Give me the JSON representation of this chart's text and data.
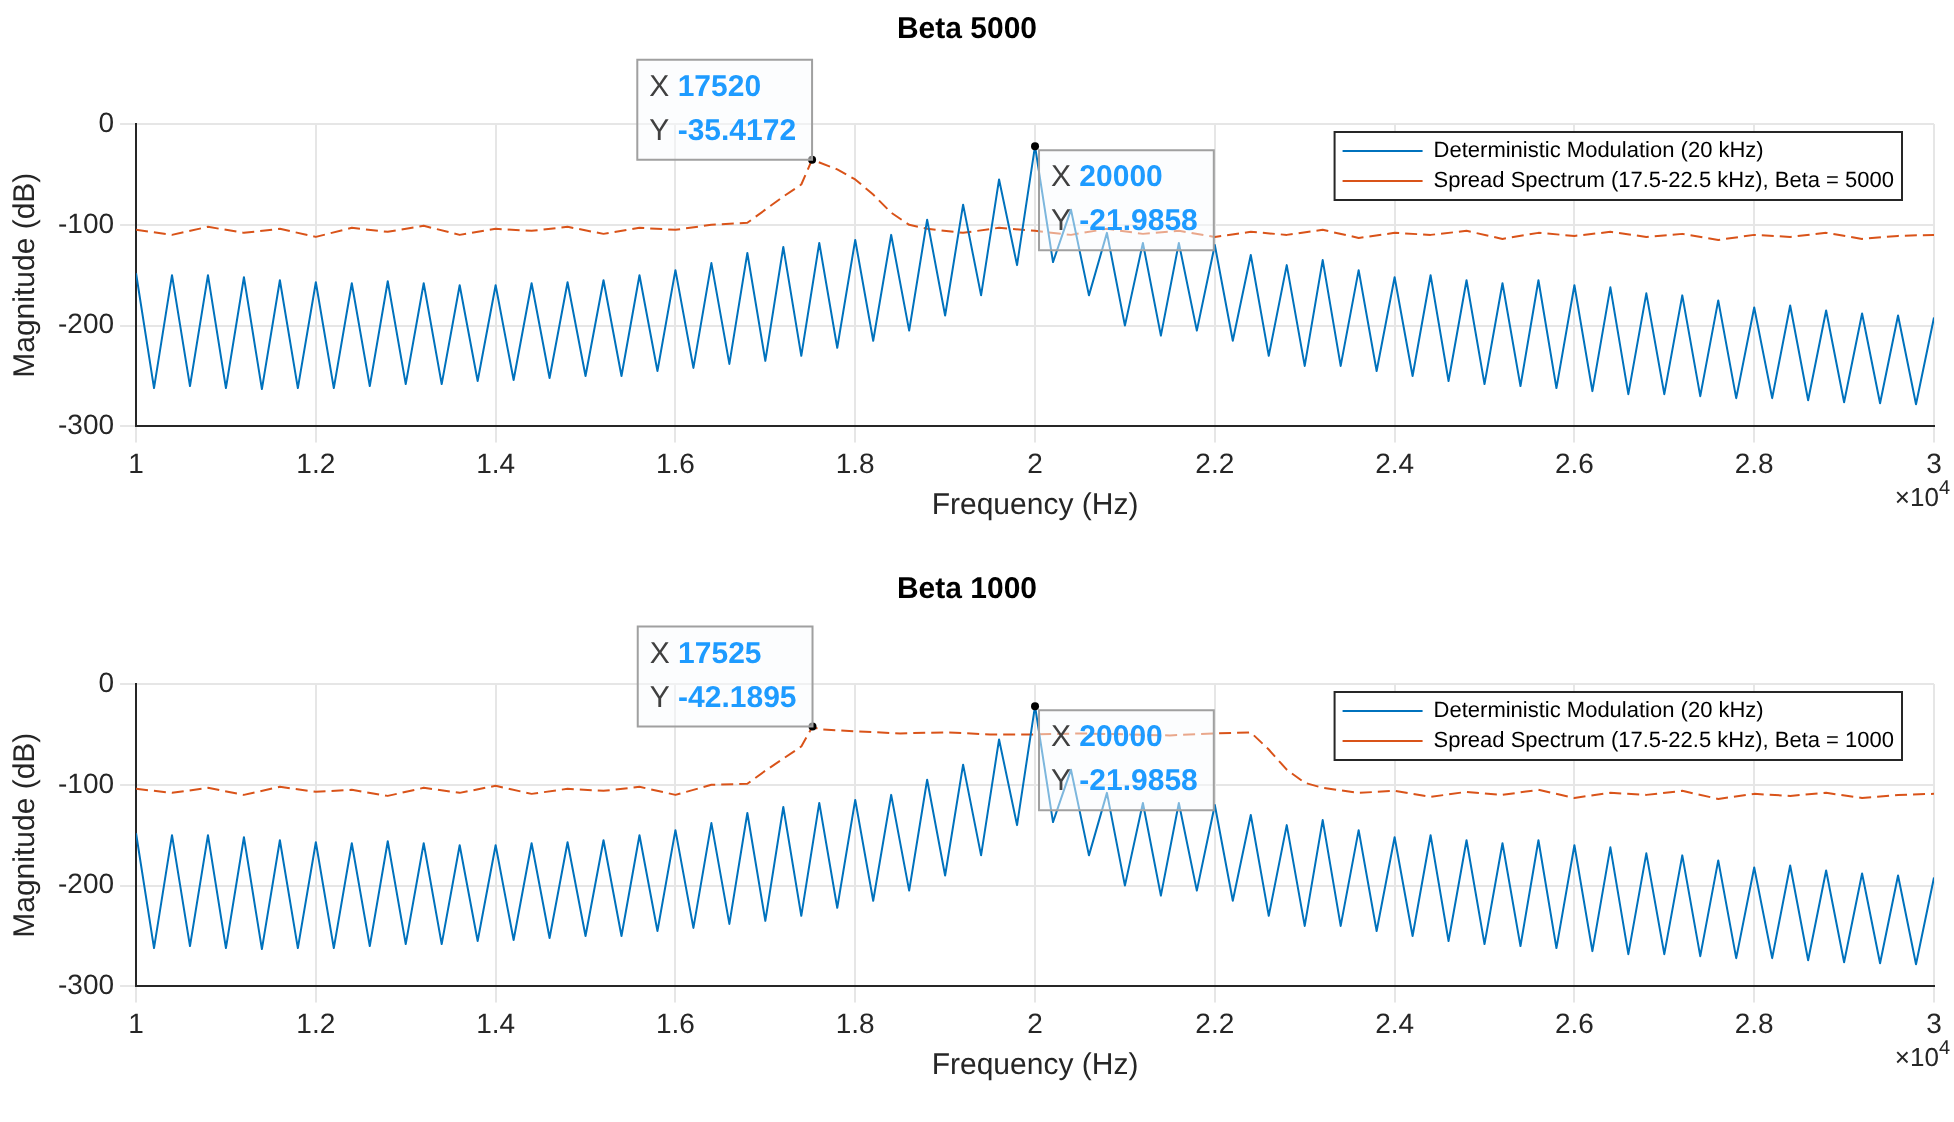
{
  "chart_data": [
    {
      "type": "line",
      "title": "Beta 5000",
      "xlabel": "Frequency (Hz)",
      "ylabel": "Magnitude (dB)",
      "xlim": [
        1,
        3
      ],
      "ylim": [
        -300,
        0
      ],
      "xticks": [
        1,
        1.2,
        1.4,
        1.6,
        1.8,
        2,
        2.2,
        2.4,
        2.6,
        2.8,
        3
      ],
      "yticks": [
        -300,
        -200,
        -100,
        0
      ],
      "grid": true,
      "legend": "top right",
      "marker": "none",
      "annotations": [
        {
          "text": "X 17520\nY -35.4172",
          "x": 1.752,
          "y": -35.4172
        },
        {
          "text": "X 20000\nY -21.9858",
          "x": 2,
          "y": -21.9858
        },
        "×10$^{4}$"
      ],
      "series": [
        {
          "name": "Deterministic Modulation (20 kHz)",
          "color": "#0072bd",
          "line_style": "solid",
          "x": [
            1,
            1.02,
            1.04,
            1.06,
            1.08,
            1.1,
            1.12,
            1.14,
            1.16,
            1.18,
            1.2,
            1.22,
            1.24,
            1.26,
            1.28,
            1.3,
            1.32,
            1.34,
            1.36,
            1.38,
            1.4,
            1.42,
            1.44,
            1.46,
            1.48,
            1.5,
            1.52,
            1.54,
            1.56,
            1.58,
            1.6,
            1.62,
            1.64,
            1.66,
            1.68,
            1.7,
            1.72,
            1.74,
            1.76,
            1.78,
            1.8,
            1.82,
            1.84,
            1.86,
            1.88,
            1.9,
            1.92,
            1.94,
            1.96,
            1.98,
            2,
            2.02,
            2.04,
            2.06,
            2.08,
            2.1,
            2.12,
            2.14,
            2.16,
            2.18,
            2.2,
            2.22,
            2.24,
            2.26,
            2.28,
            2.3,
            2.32,
            2.34,
            2.36,
            2.38,
            2.4,
            2.42,
            2.44,
            2.46,
            2.48,
            2.5,
            2.52,
            2.54,
            2.56,
            2.58,
            2.6,
            2.62,
            2.64,
            2.66,
            2.68,
            2.7,
            2.72,
            2.74,
            2.76,
            2.78,
            2.8,
            2.82,
            2.84,
            2.86,
            2.88,
            2.9,
            2.92,
            2.94,
            2.96,
            2.98,
            3
          ],
          "values": [
            -148,
            -262,
            -150,
            -260,
            -150,
            -262,
            -152,
            -263,
            -155,
            -262,
            -157,
            -262,
            -158,
            -260,
            -156,
            -258,
            -158,
            -258,
            -160,
            -255,
            -160,
            -254,
            -158,
            -252,
            -157,
            -250,
            -155,
            -250,
            -150,
            -245,
            -145,
            -242,
            -138,
            -238,
            -128,
            -235,
            -122,
            -230,
            -118,
            -222,
            -115,
            -215,
            -110,
            -205,
            -95,
            -190,
            -80,
            -170,
            -55,
            -140,
            -21.9858,
            -137,
            -85,
            -170,
            -108,
            -200,
            -118,
            -210,
            -118,
            -205,
            -120,
            -215,
            -130,
            -230,
            -140,
            -240,
            -135,
            -240,
            -145,
            -245,
            -152,
            -250,
            -150,
            -255,
            -155,
            -258,
            -158,
            -260,
            -155,
            -262,
            -160,
            -265,
            -162,
            -268,
            -168,
            -268,
            -170,
            -270,
            -175,
            -272,
            -182,
            -272,
            -180,
            -274,
            -185,
            -276,
            -188,
            -277,
            -190,
            -278,
            -192
          ]
        },
        {
          "name": "Spread Spectrum (17.5-22.5 kHz), Beta = 5000",
          "color": "#d95319",
          "line_style": "dashed",
          "x": [
            1,
            1.04,
            1.08,
            1.12,
            1.16,
            1.2,
            1.24,
            1.28,
            1.32,
            1.36,
            1.4,
            1.44,
            1.48,
            1.52,
            1.56,
            1.6,
            1.64,
            1.68,
            1.7,
            1.72,
            1.74,
            1.752,
            1.78,
            1.8,
            1.82,
            1.84,
            1.86,
            1.88,
            1.92,
            1.96,
            2,
            2.04,
            2.08,
            2.12,
            2.16,
            2.2,
            2.24,
            2.28,
            2.32,
            2.36,
            2.4,
            2.44,
            2.48,
            2.52,
            2.56,
            2.6,
            2.64,
            2.68,
            2.72,
            2.76,
            2.8,
            2.84,
            2.88,
            2.92,
            2.96,
            3
          ],
          "values": [
            -105,
            -110,
            -102,
            -108,
            -104,
            -112,
            -103,
            -107,
            -101,
            -110,
            -104,
            -106,
            -102,
            -109,
            -103,
            -105,
            -100,
            -98,
            -85,
            -72,
            -60,
            -35.4172,
            -45,
            -55,
            -70,
            -88,
            -100,
            -104,
            -108,
            -103,
            -106,
            -110,
            -104,
            -109,
            -106,
            -112,
            -107,
            -110,
            -105,
            -113,
            -108,
            -110,
            -106,
            -114,
            -108,
            -111,
            -107,
            -112,
            -109,
            -115,
            -110,
            -112,
            -108,
            -114,
            -111,
            -110
          ]
        }
      ]
    },
    {
      "type": "line",
      "title": "Beta 1000",
      "xlabel": "Frequency (Hz)",
      "ylabel": "Magnitude (dB)",
      "xlim": [
        1,
        3
      ],
      "ylim": [
        -300,
        0
      ],
      "xticks": [
        1,
        1.2,
        1.4,
        1.6,
        1.8,
        2,
        2.2,
        2.4,
        2.6,
        2.8,
        3
      ],
      "yticks": [
        -300,
        -200,
        -100,
        0
      ],
      "grid": true,
      "legend": "top right",
      "marker": "none",
      "annotations": [
        {
          "text": "X 17525\nY -42.1895",
          "x": 1.7525,
          "y": -42.1895
        },
        {
          "text": "X 20000\nY -21.9858",
          "x": 2,
          "y": -21.9858
        },
        "×10$^{4}$"
      ],
      "series": [
        {
          "name": "Deterministic Modulation (20 kHz)",
          "color": "#0072bd",
          "line_style": "solid",
          "x": [
            1,
            1.02,
            1.04,
            1.06,
            1.08,
            1.1,
            1.12,
            1.14,
            1.16,
            1.18,
            1.2,
            1.22,
            1.24,
            1.26,
            1.28,
            1.3,
            1.32,
            1.34,
            1.36,
            1.38,
            1.4,
            1.42,
            1.44,
            1.46,
            1.48,
            1.5,
            1.52,
            1.54,
            1.56,
            1.58,
            1.6,
            1.62,
            1.64,
            1.66,
            1.68,
            1.7,
            1.72,
            1.74,
            1.76,
            1.78,
            1.8,
            1.82,
            1.84,
            1.86,
            1.88,
            1.9,
            1.92,
            1.94,
            1.96,
            1.98,
            2,
            2.02,
            2.04,
            2.06,
            2.08,
            2.1,
            2.12,
            2.14,
            2.16,
            2.18,
            2.2,
            2.22,
            2.24,
            2.26,
            2.28,
            2.3,
            2.32,
            2.34,
            2.36,
            2.38,
            2.4,
            2.42,
            2.44,
            2.46,
            2.48,
            2.5,
            2.52,
            2.54,
            2.56,
            2.58,
            2.6,
            2.62,
            2.64,
            2.66,
            2.68,
            2.7,
            2.72,
            2.74,
            2.76,
            2.78,
            2.8,
            2.82,
            2.84,
            2.86,
            2.88,
            2.9,
            2.92,
            2.94,
            2.96,
            2.98,
            3
          ],
          "values": [
            -148,
            -262,
            -150,
            -260,
            -150,
            -262,
            -152,
            -263,
            -155,
            -262,
            -157,
            -262,
            -158,
            -260,
            -156,
            -258,
            -158,
            -258,
            -160,
            -255,
            -160,
            -254,
            -158,
            -252,
            -157,
            -250,
            -155,
            -250,
            -150,
            -245,
            -145,
            -242,
            -138,
            -238,
            -128,
            -235,
            -122,
            -230,
            -118,
            -222,
            -115,
            -215,
            -110,
            -205,
            -95,
            -190,
            -80,
            -170,
            -55,
            -140,
            -21.9858,
            -137,
            -85,
            -170,
            -108,
            -200,
            -118,
            -210,
            -118,
            -205,
            -120,
            -215,
            -130,
            -230,
            -140,
            -240,
            -135,
            -240,
            -145,
            -245,
            -152,
            -250,
            -150,
            -255,
            -155,
            -258,
            -158,
            -260,
            -155,
            -262,
            -160,
            -265,
            -162,
            -268,
            -168,
            -268,
            -170,
            -270,
            -175,
            -272,
            -182,
            -272,
            -180,
            -274,
            -185,
            -276,
            -188,
            -277,
            -190,
            -278,
            -192
          ]
        },
        {
          "name": "Spread Spectrum (17.5-22.5 kHz), Beta = 1000",
          "color": "#d95319",
          "line_style": "dashed",
          "x": [
            1,
            1.04,
            1.08,
            1.12,
            1.16,
            1.2,
            1.24,
            1.28,
            1.32,
            1.36,
            1.4,
            1.44,
            1.48,
            1.52,
            1.56,
            1.6,
            1.64,
            1.68,
            1.7,
            1.72,
            1.74,
            1.7525,
            1.76,
            1.8,
            1.85,
            1.9,
            1.95,
            2,
            2.05,
            2.1,
            2.15,
            2.2,
            2.24,
            2.26,
            2.28,
            2.3,
            2.32,
            2.36,
            2.4,
            2.44,
            2.48,
            2.52,
            2.56,
            2.6,
            2.64,
            2.68,
            2.72,
            2.76,
            2.8,
            2.84,
            2.88,
            2.92,
            2.96,
            3
          ],
          "values": [
            -104,
            -108,
            -103,
            -110,
            -102,
            -107,
            -105,
            -111,
            -103,
            -108,
            -101,
            -109,
            -104,
            -106,
            -102,
            -110,
            -100,
            -99,
            -86,
            -74,
            -62,
            -42.1895,
            -45,
            -47,
            -49,
            -48,
            -50,
            -50,
            -49,
            -50,
            -51,
            -49,
            -48,
            -65,
            -85,
            -98,
            -103,
            -108,
            -106,
            -112,
            -107,
            -110,
            -105,
            -113,
            -108,
            -110,
            -106,
            -114,
            -109,
            -111,
            -108,
            -113,
            -110,
            -109
          ]
        }
      ]
    }
  ]
}
